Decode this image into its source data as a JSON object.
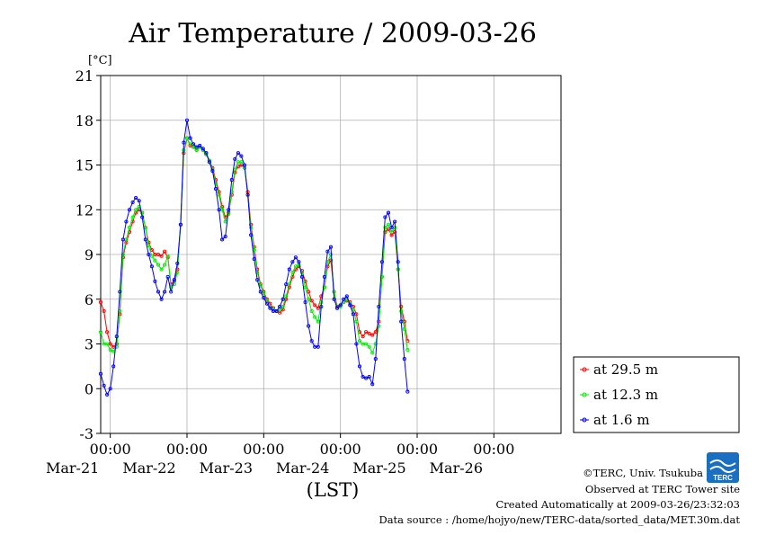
{
  "chart_data": {
    "type": "line",
    "title": "Air Temperature / 2009-03-26",
    "ylabel": "[°C]",
    "xlabel": "(LST)",
    "ylim": [
      -3,
      21
    ],
    "yticks": [
      -3,
      0,
      3,
      6,
      9,
      12,
      15,
      18,
      21
    ],
    "xlim_hours": [
      0,
      144
    ],
    "x_unit": "hours from 2009-03-20 21:00 LST",
    "x_ticks": [
      {
        "time": "00:00",
        "date": "Mar-21",
        "x": 3
      },
      {
        "time": "00:00",
        "date": "Mar-22",
        "x": 27
      },
      {
        "time": "00:00",
        "date": "Mar-23",
        "x": 51
      },
      {
        "time": "00:00",
        "date": "Mar-24",
        "x": 75
      },
      {
        "time": "00:00",
        "date": "Mar-25",
        "x": 99
      },
      {
        "time": "00:00",
        "date": "Mar-26",
        "x": 123
      }
    ],
    "grid": true,
    "legend_position": "right",
    "series": [
      {
        "name": "at 29.5 m",
        "color": "#ff0000",
        "points": [
          [
            0,
            5.8
          ],
          [
            1,
            5.2
          ],
          [
            2,
            3.8
          ],
          [
            3,
            3.0
          ],
          [
            4,
            2.8
          ],
          [
            5,
            3.0
          ],
          [
            6,
            5.0
          ],
          [
            7,
            8.8
          ],
          [
            8,
            9.8
          ],
          [
            9,
            10.5
          ],
          [
            10,
            11.2
          ],
          [
            11,
            11.8
          ],
          [
            12,
            12.0
          ],
          [
            13,
            11.8
          ],
          [
            14,
            10.8
          ],
          [
            15,
            9.8
          ],
          [
            16,
            9.3
          ],
          [
            17,
            9.0
          ],
          [
            18,
            9.0
          ],
          [
            19,
            8.9
          ],
          [
            20,
            9.2
          ],
          [
            21,
            8.8
          ],
          [
            22,
            7.0
          ],
          [
            23,
            7.2
          ],
          [
            24,
            8.0
          ],
          [
            25,
            11.0
          ],
          [
            26,
            15.8
          ],
          [
            27,
            16.8
          ],
          [
            28,
            16.3
          ],
          [
            29,
            16.2
          ],
          [
            30,
            16.0
          ],
          [
            31,
            16.2
          ],
          [
            32,
            16.0
          ],
          [
            33,
            15.8
          ],
          [
            34,
            15.3
          ],
          [
            35,
            14.8
          ],
          [
            36,
            14.0
          ],
          [
            37,
            13.2
          ],
          [
            38,
            12.2
          ],
          [
            39,
            11.5
          ],
          [
            40,
            11.8
          ],
          [
            41,
            13.0
          ],
          [
            42,
            14.5
          ],
          [
            43,
            14.9
          ],
          [
            44,
            15.0
          ],
          [
            45,
            14.8
          ],
          [
            46,
            13.2
          ],
          [
            47,
            11.0
          ],
          [
            48,
            9.5
          ],
          [
            49,
            8.0
          ],
          [
            50,
            7.0
          ],
          [
            51,
            6.5
          ],
          [
            52,
            6.0
          ],
          [
            53,
            5.7
          ],
          [
            54,
            5.4
          ],
          [
            55,
            5.2
          ],
          [
            56,
            5.1
          ],
          [
            57,
            5.3
          ],
          [
            58,
            6.0
          ],
          [
            59,
            6.8
          ],
          [
            60,
            7.5
          ],
          [
            61,
            8.0
          ],
          [
            62,
            8.2
          ],
          [
            63,
            7.9
          ],
          [
            64,
            7.2
          ],
          [
            65,
            6.5
          ],
          [
            66,
            5.9
          ],
          [
            67,
            5.6
          ],
          [
            68,
            5.4
          ],
          [
            69,
            6.2
          ],
          [
            70,
            6.8
          ],
          [
            71,
            8.2
          ],
          [
            72,
            8.6
          ],
          [
            73,
            6.5
          ],
          [
            74,
            5.5
          ],
          [
            75,
            5.6
          ],
          [
            76,
            5.8
          ],
          [
            77,
            5.9
          ],
          [
            78,
            5.8
          ],
          [
            79,
            5.5
          ],
          [
            80,
            5.0
          ],
          [
            81,
            3.8
          ],
          [
            82,
            3.5
          ],
          [
            83,
            3.8
          ],
          [
            84,
            3.7
          ],
          [
            85,
            3.6
          ],
          [
            86,
            3.8
          ],
          [
            87,
            4.5
          ],
          [
            88,
            7.5
          ],
          [
            89,
            10.5
          ],
          [
            90,
            10.7
          ],
          [
            91,
            10.3
          ],
          [
            92,
            10.5
          ],
          [
            93,
            8.0
          ],
          [
            94,
            5.5
          ],
          [
            95,
            4.5
          ],
          [
            96,
            3.2
          ]
        ]
      },
      {
        "name": "at 12.3 m",
        "color": "#00ee00",
        "points": [
          [
            0,
            3.8
          ],
          [
            1,
            3.0
          ],
          [
            2,
            3.0
          ],
          [
            3,
            2.6
          ],
          [
            4,
            2.5
          ],
          [
            5,
            2.8
          ],
          [
            6,
            5.2
          ],
          [
            7,
            9.0
          ],
          [
            8,
            10.0
          ],
          [
            9,
            10.8
          ],
          [
            10,
            11.5
          ],
          [
            11,
            12.0
          ],
          [
            12,
            12.2
          ],
          [
            13,
            11.8
          ],
          [
            14,
            10.8
          ],
          [
            15,
            9.6
          ],
          [
            16,
            8.9
          ],
          [
            17,
            8.6
          ],
          [
            18,
            8.3
          ],
          [
            19,
            8.0
          ],
          [
            20,
            8.3
          ],
          [
            21,
            8.9
          ],
          [
            22,
            6.8
          ],
          [
            23,
            7.0
          ],
          [
            24,
            7.8
          ],
          [
            25,
            11.0
          ],
          [
            26,
            16.0
          ],
          [
            27,
            16.8
          ],
          [
            28,
            16.4
          ],
          [
            29,
            16.2
          ],
          [
            30,
            16.0
          ],
          [
            31,
            16.2
          ],
          [
            32,
            16.0
          ],
          [
            33,
            15.7
          ],
          [
            34,
            15.3
          ],
          [
            35,
            14.7
          ],
          [
            36,
            13.8
          ],
          [
            37,
            13.0
          ],
          [
            38,
            12.0
          ],
          [
            39,
            11.2
          ],
          [
            40,
            11.7
          ],
          [
            41,
            13.2
          ],
          [
            42,
            14.7
          ],
          [
            43,
            15.2
          ],
          [
            44,
            15.2
          ],
          [
            45,
            14.8
          ],
          [
            46,
            13.0
          ],
          [
            47,
            10.8
          ],
          [
            48,
            9.3
          ],
          [
            49,
            7.8
          ],
          [
            50,
            6.9
          ],
          [
            51,
            6.4
          ],
          [
            52,
            5.9
          ],
          [
            53,
            5.5
          ],
          [
            54,
            5.3
          ],
          [
            55,
            5.2
          ],
          [
            56,
            5.3
          ],
          [
            57,
            5.5
          ],
          [
            58,
            6.2
          ],
          [
            59,
            7.0
          ],
          [
            60,
            7.8
          ],
          [
            61,
            8.2
          ],
          [
            62,
            8.3
          ],
          [
            63,
            7.8
          ],
          [
            64,
            6.8
          ],
          [
            65,
            6.0
          ],
          [
            66,
            5.2
          ],
          [
            67,
            4.8
          ],
          [
            68,
            4.5
          ],
          [
            69,
            5.8
          ],
          [
            70,
            6.8
          ],
          [
            71,
            8.5
          ],
          [
            72,
            9.0
          ],
          [
            73,
            6.5
          ],
          [
            74,
            5.4
          ],
          [
            75,
            5.5
          ],
          [
            76,
            5.8
          ],
          [
            77,
            6.0
          ],
          [
            78,
            5.7
          ],
          [
            79,
            5.3
          ],
          [
            80,
            4.5
          ],
          [
            81,
            3.2
          ],
          [
            82,
            3.0
          ],
          [
            83,
            3.0
          ],
          [
            84,
            2.8
          ],
          [
            85,
            2.4
          ],
          [
            86,
            3.0
          ],
          [
            87,
            4.2
          ],
          [
            88,
            7.5
          ],
          [
            89,
            10.8
          ],
          [
            90,
            11.0
          ],
          [
            91,
            10.5
          ],
          [
            92,
            10.8
          ],
          [
            93,
            8.0
          ],
          [
            94,
            5.2
          ],
          [
            95,
            4.0
          ],
          [
            96,
            2.6
          ]
        ]
      },
      {
        "name": "at 1.6 m",
        "color": "#0000ff",
        "points": [
          [
            0,
            1.0
          ],
          [
            1,
            0.2
          ],
          [
            2,
            -0.4
          ],
          [
            3,
            0.0
          ],
          [
            4,
            1.5
          ],
          [
            5,
            3.5
          ],
          [
            6,
            6.5
          ],
          [
            7,
            10.0
          ],
          [
            8,
            11.2
          ],
          [
            9,
            12.0
          ],
          [
            10,
            12.5
          ],
          [
            11,
            12.8
          ],
          [
            12,
            12.6
          ],
          [
            13,
            11.5
          ],
          [
            14,
            10.0
          ],
          [
            15,
            9.0
          ],
          [
            16,
            8.2
          ],
          [
            17,
            7.2
          ],
          [
            18,
            6.5
          ],
          [
            19,
            6.0
          ],
          [
            20,
            6.5
          ],
          [
            21,
            7.5
          ],
          [
            22,
            6.5
          ],
          [
            23,
            7.3
          ],
          [
            24,
            8.4
          ],
          [
            25,
            11.0
          ],
          [
            26,
            16.5
          ],
          [
            27,
            18.0
          ],
          [
            28,
            16.8
          ],
          [
            29,
            16.4
          ],
          [
            30,
            16.2
          ],
          [
            31,
            16.3
          ],
          [
            32,
            16.1
          ],
          [
            33,
            15.8
          ],
          [
            34,
            15.2
          ],
          [
            35,
            14.6
          ],
          [
            36,
            13.4
          ],
          [
            37,
            12.0
          ],
          [
            38,
            10.0
          ],
          [
            39,
            10.2
          ],
          [
            40,
            12.0
          ],
          [
            41,
            14.0
          ],
          [
            42,
            15.4
          ],
          [
            43,
            15.8
          ],
          [
            44,
            15.6
          ],
          [
            45,
            15.0
          ],
          [
            46,
            13.0
          ],
          [
            47,
            10.3
          ],
          [
            48,
            8.7
          ],
          [
            49,
            7.3
          ],
          [
            50,
            6.5
          ],
          [
            51,
            6.1
          ],
          [
            52,
            5.7
          ],
          [
            53,
            5.4
          ],
          [
            54,
            5.2
          ],
          [
            55,
            5.2
          ],
          [
            56,
            5.5
          ],
          [
            57,
            6.0
          ],
          [
            58,
            7.0
          ],
          [
            59,
            8.0
          ],
          [
            60,
            8.5
          ],
          [
            61,
            8.8
          ],
          [
            62,
            8.5
          ],
          [
            63,
            7.5
          ],
          [
            64,
            5.8
          ],
          [
            65,
            4.2
          ],
          [
            66,
            3.2
          ],
          [
            67,
            2.8
          ],
          [
            68,
            2.8
          ],
          [
            69,
            5.5
          ],
          [
            70,
            7.5
          ],
          [
            71,
            9.2
          ],
          [
            72,
            9.5
          ],
          [
            73,
            6.0
          ],
          [
            74,
            5.4
          ],
          [
            75,
            5.6
          ],
          [
            76,
            6.0
          ],
          [
            77,
            6.2
          ],
          [
            78,
            5.6
          ],
          [
            79,
            5.0
          ],
          [
            80,
            3.0
          ],
          [
            81,
            1.5
          ],
          [
            82,
            0.8
          ],
          [
            83,
            0.7
          ],
          [
            84,
            0.8
          ],
          [
            85,
            0.3
          ],
          [
            86,
            2.0
          ],
          [
            87,
            5.5
          ],
          [
            88,
            8.5
          ],
          [
            89,
            11.5
          ],
          [
            90,
            11.8
          ],
          [
            91,
            10.8
          ],
          [
            92,
            11.2
          ],
          [
            93,
            8.5
          ],
          [
            94,
            4.5
          ],
          [
            95,
            2.0
          ],
          [
            96,
            -0.2
          ]
        ]
      }
    ]
  },
  "footer": {
    "copyright": "©TERC, Univ. Tsukuba",
    "observed": "Observed at TERC Tower site",
    "created": "Created Automatically at 2009-03-26/23:32:03",
    "source": "Data source : /home/hojyo/new/TERC-data/sorted_data/MET.30m.dat"
  },
  "logo": {
    "text": "TERC",
    "color": "#1a6fc2"
  }
}
